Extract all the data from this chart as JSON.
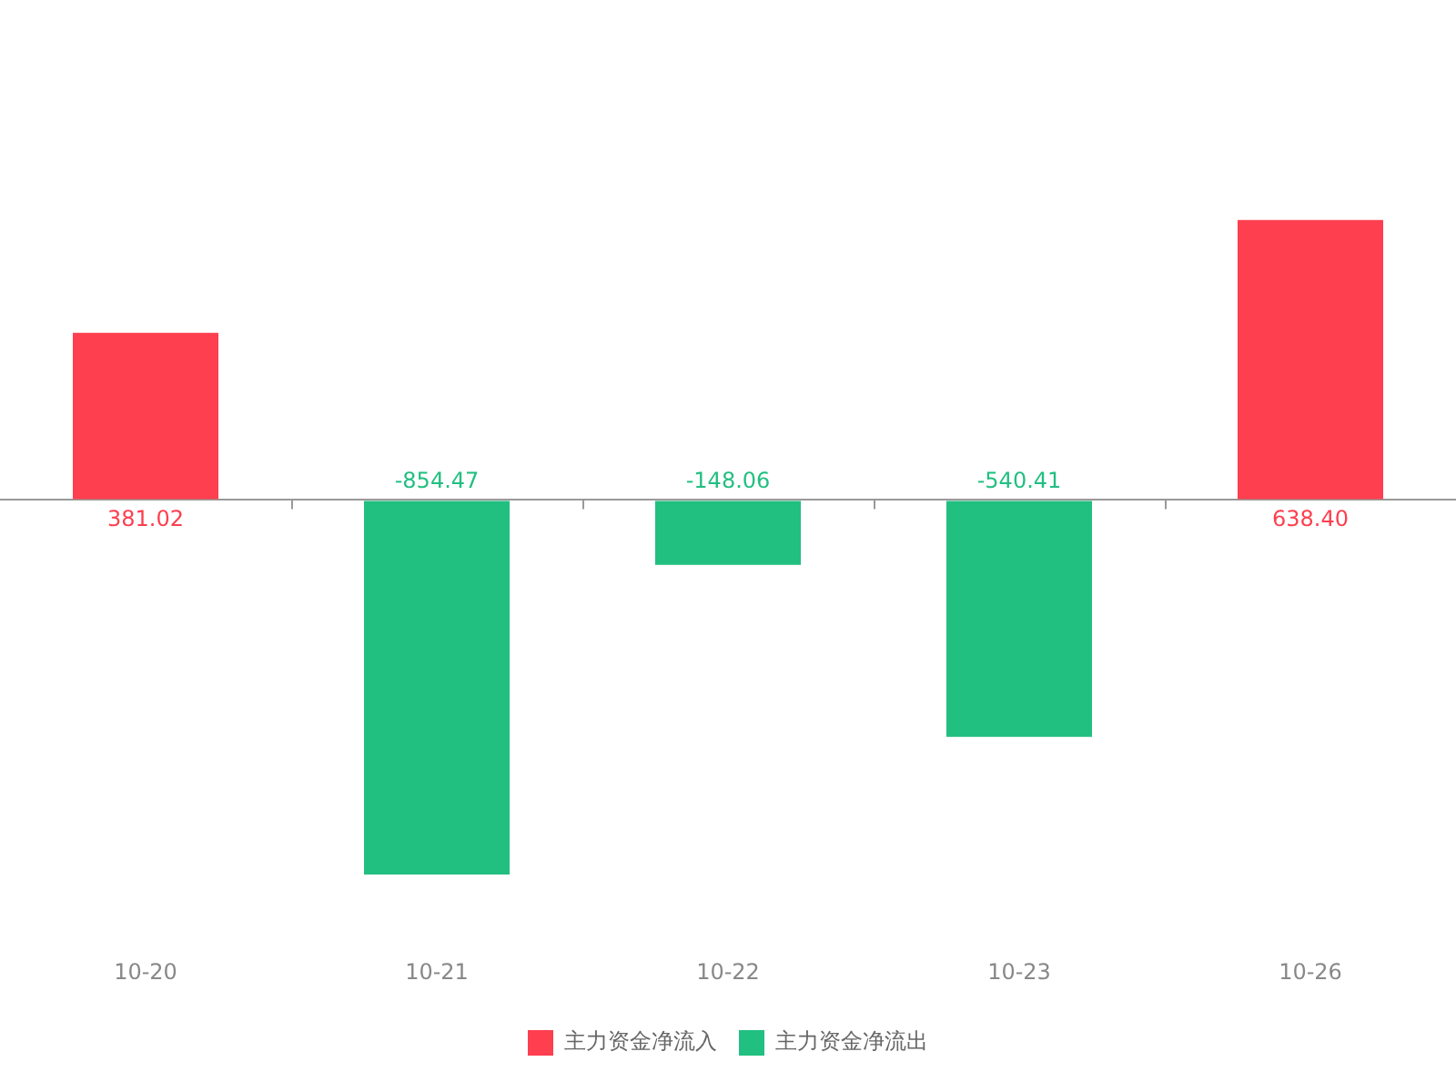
{
  "chart_data": {
    "type": "bar",
    "categories": [
      "10-20",
      "10-21",
      "10-22",
      "10-23",
      "10-26"
    ],
    "series": [
      {
        "name": "主力资金净流入",
        "color": "#fd3f4f",
        "values": [
          381.02,
          null,
          null,
          null,
          638.4
        ],
        "value_labels": [
          "381.02",
          null,
          null,
          null,
          "638.40"
        ]
      },
      {
        "name": "主力资金净流出",
        "color": "#21bf80",
        "values": [
          null,
          -854.47,
          -148.06,
          -540.41,
          null
        ],
        "value_labels": [
          null,
          "-854.47",
          "-148.06",
          "-540.41",
          null
        ]
      }
    ],
    "stacked": true,
    "legend": "bottom",
    "grid": false
  }
}
